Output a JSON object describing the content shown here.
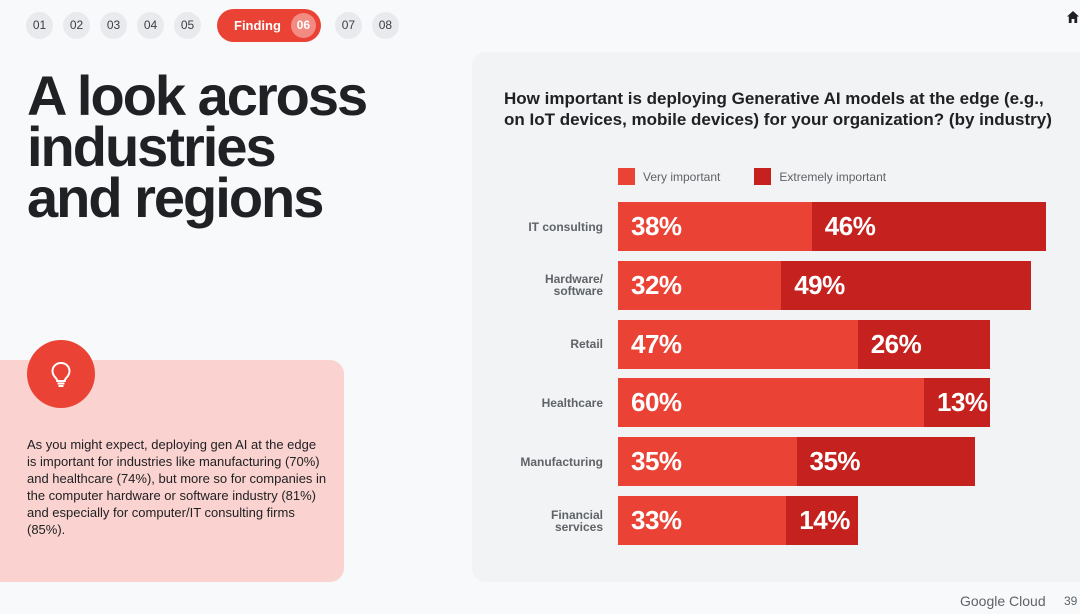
{
  "nav": {
    "items": [
      "01",
      "02",
      "03",
      "04",
      "05",
      "07",
      "08"
    ],
    "active_label": "Finding",
    "active_num": "06"
  },
  "headline": [
    "A look across",
    "industries",
    "and regions"
  ],
  "insight": {
    "icon": "lightbulb-icon",
    "text": "As you might expect, deploying gen AI at the edge is important for industries like manufacturing (70%) and healthcare (74%), but more so for companies in the computer hardware or software industry (81%) and especially for computer/IT consulting firms (85%)."
  },
  "colors": {
    "accent": "#ea4335",
    "very_important": "#ea4335",
    "extremely_important": "#c5221f",
    "insight_bg": "#fad2cf"
  },
  "chart_data": {
    "type": "bar",
    "orientation": "horizontal",
    "stacked": true,
    "title": "How important is deploying Generative AI models at the edge (e.g., on IoT devices, mobile devices) for your organization? (by industry)",
    "categories": [
      "IT consulting",
      "Hardware/\nsoftware",
      "Retail",
      "Healthcare",
      "Manufacturing",
      "Financial\nservices"
    ],
    "series": [
      {
        "name": "Very important",
        "values": [
          38,
          32,
          47,
          60,
          35,
          33
        ]
      },
      {
        "name": "Extremely important",
        "values": [
          46,
          49,
          26,
          13,
          35,
          14
        ]
      }
    ],
    "value_suffix": "%",
    "xlabel": "",
    "ylabel": "",
    "legend_position": "top"
  },
  "footer": {
    "brand": "Google Cloud",
    "page": "39"
  }
}
